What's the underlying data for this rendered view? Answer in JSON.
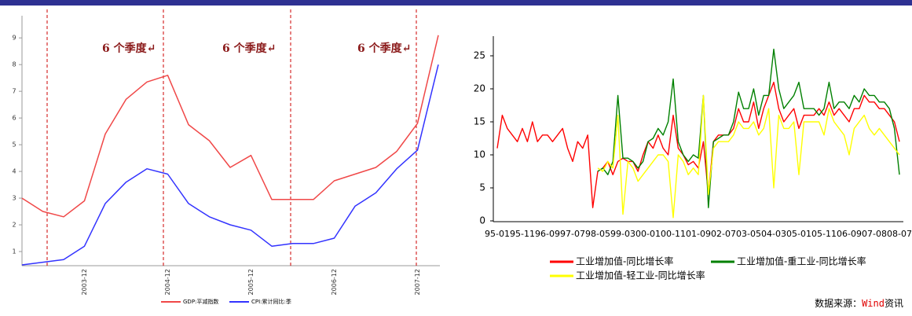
{
  "chart_data": [
    {
      "type": "line",
      "categories": [
        null,
        null,
        null,
        "2003-12",
        null,
        null,
        null,
        "2004-12",
        null,
        null,
        null,
        "2005-12",
        null,
        null,
        null,
        "2006-12",
        null,
        null,
        null,
        "2007-12",
        null
      ],
      "series": [
        {
          "name": "GDP:平减指数",
          "color": "#f04848",
          "values": [
            3.0,
            2.5,
            2.3,
            2.9,
            5.4,
            6.7,
            7.35,
            7.6,
            5.75,
            5.15,
            4.15,
            4.6,
            2.95,
            2.95,
            2.95,
            3.65,
            3.9,
            4.15,
            4.75,
            5.8,
            9.1
          ]
        },
        {
          "name": "CPI:累计同比:季",
          "color": "#3333ff",
          "values": [
            0.5,
            0.6,
            0.7,
            1.2,
            2.8,
            3.6,
            4.1,
            3.9,
            2.8,
            2.3,
            2.0,
            1.8,
            1.2,
            1.3,
            1.3,
            1.5,
            2.7,
            3.2,
            4.1,
            4.8,
            8.0
          ]
        }
      ],
      "annotations": [
        "6 个季度↵",
        "6 个季度↵",
        "6 个季度↵"
      ],
      "ylim": [
        0.5,
        9.3
      ],
      "yticks": [
        1,
        2,
        3,
        4,
        5,
        6,
        7,
        8,
        9
      ],
      "grid": false
    },
    {
      "type": "line",
      "categories": [
        "95-01",
        null,
        null,
        null,
        null,
        "95-11",
        null,
        null,
        null,
        null,
        "96-09",
        null,
        null,
        null,
        null,
        "97-07",
        null,
        null,
        null,
        null,
        "98-05",
        null,
        null,
        null,
        null,
        "99-03",
        null,
        null,
        null,
        null,
        "00-01",
        null,
        null,
        null,
        null,
        "00-11",
        null,
        null,
        null,
        null,
        "01-09",
        null,
        null,
        null,
        null,
        "02-07",
        null,
        null,
        null,
        null,
        "03-05",
        null,
        null,
        null,
        null,
        "04-03",
        null,
        null,
        null,
        null,
        "05-01",
        null,
        null,
        null,
        null,
        "05-11",
        null,
        null,
        null,
        null,
        "06-09",
        null,
        null,
        null,
        null,
        "07-08",
        null,
        null,
        null,
        null,
        "08-07"
      ],
      "series": [
        {
          "name": "工业增加值-同比增长率",
          "color": "#ff0000",
          "values": [
            11,
            16,
            14,
            13,
            12,
            14,
            12,
            15,
            12,
            13,
            13,
            12,
            13,
            14,
            11,
            9,
            12,
            11,
            13,
            2,
            7.5,
            8,
            9,
            7,
            9,
            9.5,
            9,
            9,
            7.5,
            10,
            12,
            11,
            13,
            11,
            10,
            16,
            11,
            10,
            8.5,
            9,
            8,
            12,
            4,
            12,
            13,
            13,
            13,
            14,
            17,
            15,
            15,
            18,
            14,
            17,
            19,
            21,
            17,
            15,
            16,
            17,
            14,
            16,
            16,
            16,
            17,
            16,
            18,
            16,
            17,
            16,
            15,
            17,
            17,
            19,
            18,
            18,
            17,
            17,
            16,
            15,
            12
          ]
        },
        {
          "name": "工业增加值-重工业-同比增长率",
          "color": "#008000",
          "values": [
            null,
            null,
            null,
            null,
            null,
            null,
            null,
            null,
            null,
            null,
            null,
            null,
            null,
            null,
            null,
            null,
            null,
            null,
            null,
            null,
            7.5,
            8,
            7,
            9,
            19,
            9.5,
            9.5,
            9,
            8,
            9,
            12,
            12.5,
            14,
            13,
            15,
            21.5,
            12,
            10,
            9,
            10,
            9.5,
            19,
            2,
            12,
            12.5,
            13,
            13,
            15,
            19.5,
            17,
            17,
            20,
            16,
            19,
            19,
            26,
            20,
            17,
            18,
            19,
            21,
            17,
            17,
            17,
            16,
            17,
            21,
            17,
            18,
            18,
            17,
            19,
            18,
            20,
            19,
            19,
            18,
            18,
            17,
            14,
            7
          ]
        },
        {
          "name": "工业增加值-轻工业-同比增长率",
          "color": "#ffff00",
          "values": [
            null,
            null,
            null,
            null,
            null,
            null,
            null,
            null,
            null,
            null,
            null,
            null,
            null,
            null,
            null,
            null,
            null,
            null,
            null,
            null,
            8,
            7.5,
            9,
            8,
            16,
            1,
            9,
            8,
            6,
            7,
            8,
            9,
            10,
            10,
            9,
            0.5,
            10,
            9,
            7,
            8,
            7,
            19,
            4,
            11,
            12,
            12,
            12,
            13,
            15,
            14,
            14,
            15,
            13,
            14,
            17,
            5,
            16,
            14,
            14,
            15,
            7,
            15,
            15,
            15,
            15,
            13,
            17,
            15,
            14,
            13,
            10,
            14,
            15,
            16,
            14,
            13,
            14,
            13,
            12,
            11,
            10
          ]
        }
      ],
      "ylim": [
        0,
        28
      ],
      "yticks": [
        0,
        5,
        10,
        15,
        20,
        25
      ],
      "grid": false
    }
  ],
  "source": {
    "prefix": "数据来源：",
    "brand": "Wind",
    "suffix": "资讯"
  }
}
